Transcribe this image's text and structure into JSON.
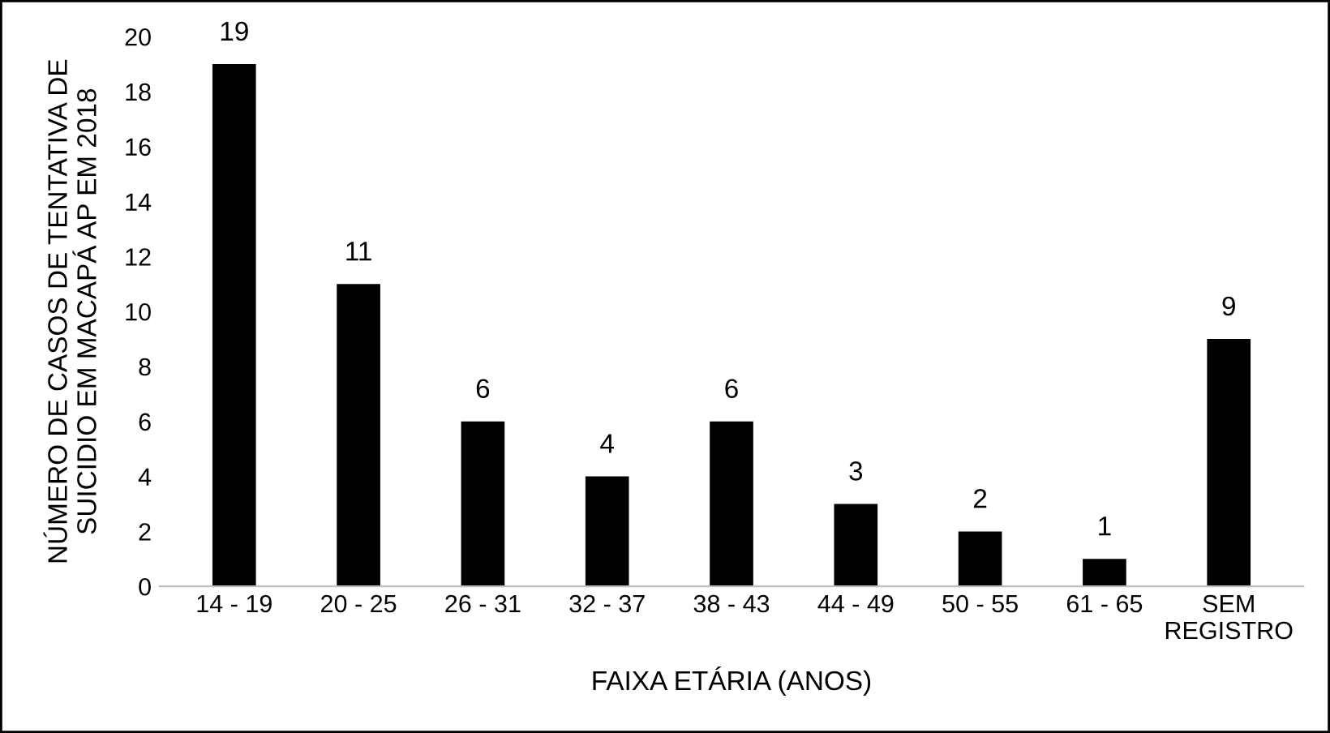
{
  "chart_data": {
    "type": "bar",
    "xlabel": "FAIXA ETÁRIA (ANOS)",
    "ylabel": "NÚMERO DE CASOS DE TENTATIVA DE\nSUICIDIO EM MACAPÁ AP EM 2018",
    "categories": [
      "14 - 19",
      "20 - 25",
      "26 - 31",
      "32 - 37",
      "38 - 43",
      "44 - 49",
      "50 - 55",
      "61 - 65",
      "SEM\nREGISTRO"
    ],
    "values": [
      19,
      11,
      6,
      4,
      6,
      3,
      2,
      1,
      9
    ],
    "color": "#000000",
    "ylim": [
      0,
      20
    ],
    "yticks": [
      0,
      2,
      4,
      6,
      8,
      10,
      12,
      14,
      16,
      18,
      20
    ],
    "grid": false,
    "data_labels": true,
    "legend": false
  }
}
